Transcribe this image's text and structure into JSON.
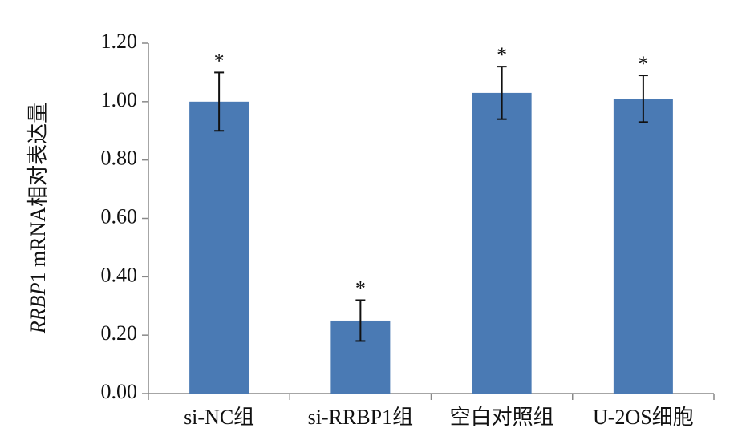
{
  "chart_data": {
    "type": "bar",
    "y_label_parts": [
      "RRBP",
      "1 mRNA相对表达量"
    ],
    "categories": [
      "si-NC组",
      "si-RRBP1组",
      "空白对照组",
      "U-2OS细胞"
    ],
    "values": [
      1.0,
      0.25,
      1.03,
      1.01
    ],
    "errors": [
      0.1,
      0.07,
      0.09,
      0.08
    ],
    "annotations": [
      "*",
      "*",
      "*",
      "*"
    ],
    "color": "#4a7ab4",
    "ylim": [
      0,
      1.2
    ],
    "yticks": [
      {
        "value": 0,
        "label": "0.00"
      },
      {
        "value": 0.2,
        "label": "0.20"
      },
      {
        "value": 0.4,
        "label": "0.40"
      },
      {
        "value": 0.6,
        "label": "0.60"
      },
      {
        "value": 0.8,
        "label": "0.80"
      },
      {
        "value": 1.0,
        "label": "1.00"
      },
      {
        "value": 1.2,
        "label": "1.20"
      }
    ],
    "grid": false
  }
}
